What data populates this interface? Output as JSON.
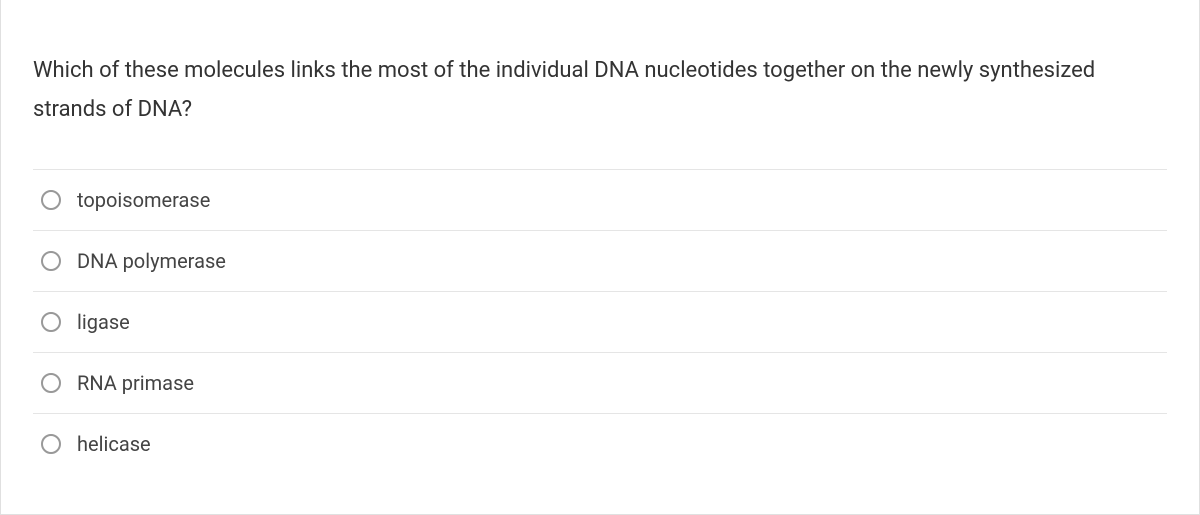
{
  "question": {
    "text": "Which of these molecules links the most of the individual DNA nucleotides together on the newly synthesized strands of DNA?"
  },
  "options": [
    {
      "label": "topoisomerase"
    },
    {
      "label": "DNA polymerase"
    },
    {
      "label": "ligase"
    },
    {
      "label": "RNA primase"
    },
    {
      "label": "helicase"
    }
  ],
  "colors": {
    "border": "#e0e0e0",
    "divider": "#e5e5e5",
    "text_primary": "#333333",
    "text_option": "#444444",
    "radio_border": "#999999",
    "background": "#ffffff"
  },
  "typography": {
    "question_fontsize": 22,
    "option_fontsize": 20
  }
}
